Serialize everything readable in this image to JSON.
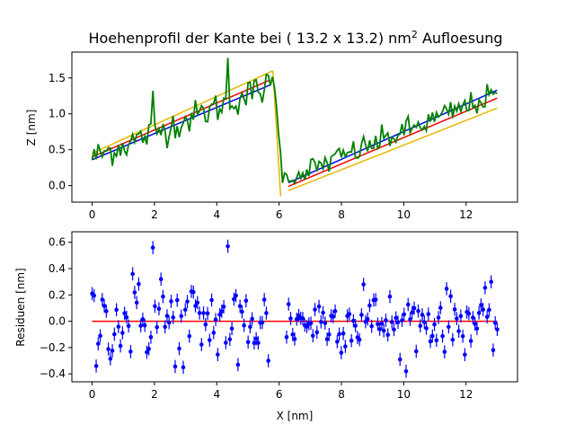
{
  "chart_data": [
    {
      "type": "line",
      "title": "Hoehenprofil der Kante bei ( 13.2 x  13.2) nm",
      "title_sup": "2",
      "title_suffix": " Aufloesung",
      "xlabel": "",
      "ylabel": "Z [nm]",
      "xlim": [
        -0.65,
        13.65
      ],
      "ylim": [
        -0.23,
        1.86
      ],
      "xticks": [
        0,
        2,
        4,
        6,
        8,
        10,
        12
      ],
      "yticks": [
        0.0,
        0.5,
        1.0,
        1.5
      ],
      "ytick_labels": [
        "0.0",
        "0.5",
        "1.0",
        "1.5"
      ],
      "measurement": {
        "color": "#008000",
        "x_start": 0,
        "x_end": 13,
        "step": 0.065,
        "edge_x": 5.85,
        "left_slope": 0.175,
        "left_intercept": 0.39,
        "right_slope": 0.175,
        "right_intercept": -1.0
      },
      "fits": [
        {
          "color": "#0000ff",
          "segments": [
            [
              0.0,
              0.36,
              5.7,
              1.4
            ],
            [
              6.3,
              0.04,
              13.0,
              1.33
            ]
          ]
        },
        {
          "color": "#ff0000",
          "segments": [
            [
              0.0,
              0.4,
              5.7,
              1.47
            ],
            [
              6.3,
              -0.01,
              13.0,
              1.22
            ]
          ]
        },
        {
          "color": "#e6b800",
          "segments": [
            [
              0.0,
              0.45,
              5.8,
              1.6
            ],
            [
              5.8,
              1.6,
              6.05,
              -0.15
            ],
            [
              6.3,
              -0.07,
              13.0,
              1.08
            ]
          ]
        }
      ]
    },
    {
      "type": "scatter",
      "title": "",
      "xlabel": "X [nm]",
      "ylabel": "Residuen [nm]",
      "xlim": [
        -0.65,
        13.65
      ],
      "ylim": [
        -0.46,
        0.68
      ],
      "xticks": [
        0,
        2,
        4,
        6,
        8,
        10,
        12
      ],
      "yticks": [
        -0.4,
        -0.2,
        0.0,
        0.2,
        0.4,
        0.6
      ],
      "ytick_labels": [
        "−0.4",
        "−0.2",
        "0.0",
        "0.2",
        "0.4",
        "0.6"
      ],
      "zero_line": {
        "color": "#ff0000",
        "x0": 0,
        "x1": 13,
        "y": 0
      },
      "point_color": "#0000ff",
      "error": 0.05,
      "gap": [
        5.7,
        6.2
      ],
      "x_start": 0,
      "x_end": 13,
      "step": 0.065,
      "outliers": [
        [
          1.95,
          0.56
        ],
        [
          4.35,
          0.57
        ],
        [
          1.3,
          0.36
        ],
        [
          2.2,
          0.32
        ],
        [
          8.7,
          0.28
        ],
        [
          5.65,
          -0.3
        ],
        [
          2.9,
          -0.35
        ],
        [
          4.7,
          -0.33
        ],
        [
          9.9,
          -0.29
        ],
        [
          0.15,
          -0.34
        ]
      ]
    }
  ]
}
